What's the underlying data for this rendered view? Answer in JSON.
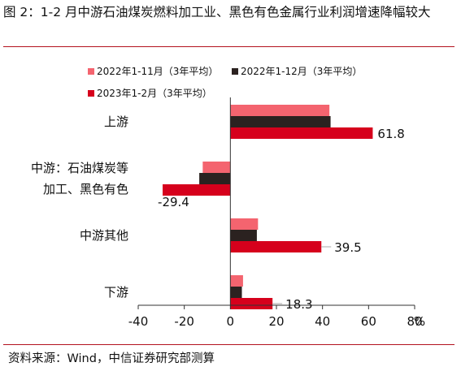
{
  "title": "图 2：1-2 月中游石油煤炭燃料加工业、黑色有色金属行业利润增速降幅较大",
  "source": "资料来源：Wind，中信证券研究部测算",
  "chart_data": {
    "type": "bar",
    "orientation": "horizontal",
    "title": "图 2：1-2 月中游石油煤炭燃料加工业、黑色有色金属行业利润增速降幅较大",
    "xlabel": "",
    "ylabel": "",
    "unit": "%",
    "xlim": [
      -40,
      80
    ],
    "x_ticks": [
      -40,
      -20,
      0,
      20,
      40,
      60,
      80
    ],
    "categories": [
      "上游",
      "中游：石油煤炭等加工、黑色有色",
      "中游其他",
      "下游"
    ],
    "category_labels": [
      [
        "上游"
      ],
      [
        "中游：石油煤炭等",
        "加工、黑色有色"
      ],
      [
        "中游其他"
      ],
      [
        "下游"
      ]
    ],
    "series": [
      {
        "name": "2022年1-11月（3年平均）",
        "values": [
          43,
          -12,
          12,
          5.5
        ],
        "color": "#f4646f"
      },
      {
        "name": "2022年1-12月（3年平均）",
        "values": [
          43.5,
          -13.5,
          11.5,
          5
        ],
        "color": "#2b2220"
      },
      {
        "name": "2023年1-2月（3年平均）",
        "values": [
          61.8,
          -29.4,
          39.5,
          18.3
        ],
        "color": "#d6001c"
      }
    ],
    "data_labels": [
      {
        "category": "上游",
        "series": "2023年1-2月（3年平均）",
        "text": "61.8"
      },
      {
        "category": "中游：石油煤炭等加工、黑色有色",
        "series": "2023年1-2月（3年平均）",
        "text": "-29.4"
      },
      {
        "category": "中游其他",
        "series": "2023年1-2月（3年平均）",
        "text": "39.5"
      },
      {
        "category": "下游",
        "series": "2023年1-2月（3年平均）",
        "text": "18.3"
      }
    ],
    "legend_position": "top-left",
    "grid": false
  }
}
